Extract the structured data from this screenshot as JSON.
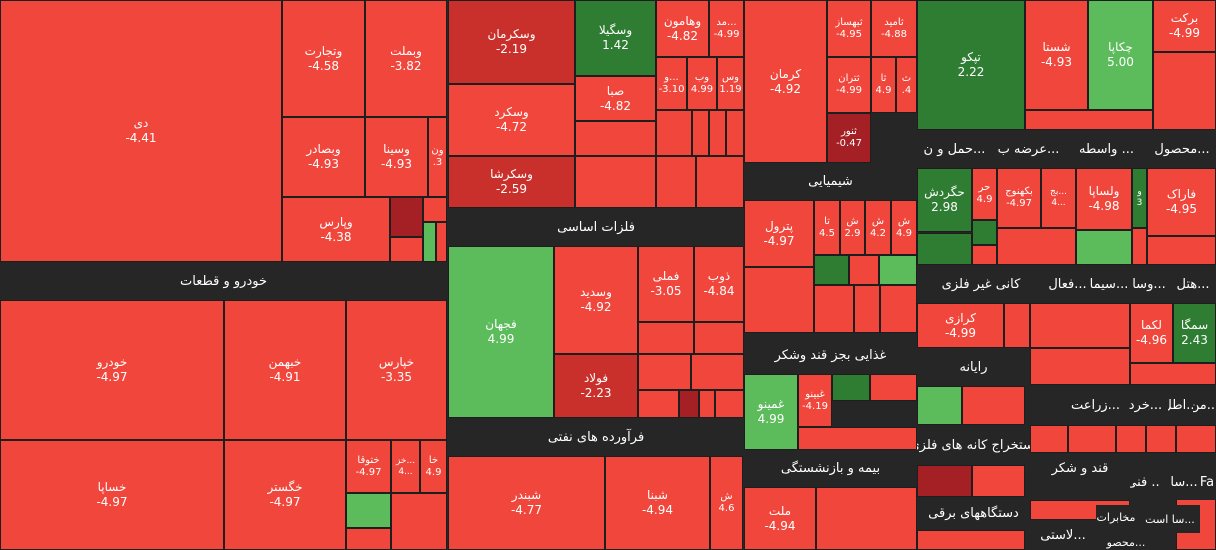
{
  "colors": {
    "red": "#f0463c",
    "dark_red": "#c9302c",
    "deep_red": "#a52024",
    "green": "#4caf50",
    "dark_green": "#2e7d32",
    "light_green": "#5cbc5c",
    "band": "#262626"
  },
  "chart_data": {
    "type": "treemap",
    "title": "",
    "sectors": [
      "خودرو و قطعات",
      "فلزات اساسی",
      "فرآورده های نفتی",
      "شیمیایی",
      "غذایی بجز قند وشکر",
      "بیمه و بازنشستگی",
      "رایانه",
      "استخراج کانه های فلزی",
      "دستگاههای برقی",
      "کانی غیر فلزی",
      "قند و شکر",
      "حمل و ن...",
      "عرضه ب...",
      "واسطه ...",
      "محصول...",
      "هتل...",
      "وسا...",
      "سیما...",
      "فعال...",
      "زراعت...",
      "خرد...",
      "اطل...",
      "من...",
      "فنی ...",
      "سا...",
      "Fa",
      "مخابرات",
      "سا است...",
      "لاستی...",
      "محصو..."
    ],
    "cells": [
      {
        "name": "دی",
        "value": "-4.41"
      },
      {
        "name": "وتجارت",
        "value": "-4.58"
      },
      {
        "name": "وبملت",
        "value": "-3.82"
      },
      {
        "name": "وبصادر",
        "value": "-4.93"
      },
      {
        "name": "وسینا",
        "value": "-4.93"
      },
      {
        "name": "ون",
        "value": ".3"
      },
      {
        "name": "وپارس",
        "value": "-4.38"
      },
      {
        "name": "خودرو",
        "value": "-4.97"
      },
      {
        "name": "خبهمن",
        "value": "-4.91"
      },
      {
        "name": "خپارس",
        "value": "-3.35"
      },
      {
        "name": "خساپا",
        "value": "-4.97"
      },
      {
        "name": "خگستر",
        "value": "-4.97"
      },
      {
        "name": "ختوقا",
        "value": "-4.97"
      },
      {
        "name": "خز...",
        "value": "4..."
      },
      {
        "name": "خا",
        "value": "4.9"
      },
      {
        "name": "وسکرمان",
        "value": "-2.19"
      },
      {
        "name": "وسکرد",
        "value": "-4.72"
      },
      {
        "name": "وسکرشا",
        "value": "-2.59"
      },
      {
        "name": "وسگیلا",
        "value": "1.42"
      },
      {
        "name": "وهامون",
        "value": "-4.82"
      },
      {
        "name": "مد...",
        "value": "-4.99"
      },
      {
        "name": "صبا",
        "value": "-4.82"
      },
      {
        "name": "و...",
        "value": "-3.10"
      },
      {
        "name": "وب",
        "value": "4.99"
      },
      {
        "name": "وس",
        "value": "1.19"
      },
      {
        "name": "فجهان",
        "value": "4.99"
      },
      {
        "name": "وسدید",
        "value": "-4.92"
      },
      {
        "name": "فملی",
        "value": "-3.05"
      },
      {
        "name": "ذوب",
        "value": "-4.84"
      },
      {
        "name": "فولاد",
        "value": "-2.23"
      },
      {
        "name": "شبندر",
        "value": "-4.77"
      },
      {
        "name": "شبنا",
        "value": "-4.94"
      },
      {
        "name": "ش",
        "value": "4.6"
      },
      {
        "name": "کرمان",
        "value": "-4.92"
      },
      {
        "name": "ثبهساز",
        "value": "-4.95"
      },
      {
        "name": "ثامید",
        "value": "-4.88"
      },
      {
        "name": "ثتران",
        "value": "-4.99"
      },
      {
        "name": "ثا",
        "value": "4.9"
      },
      {
        "name": "ث",
        "value": ".4"
      },
      {
        "name": "ثنور",
        "value": "-0.47"
      },
      {
        "name": "پترول",
        "value": "-4.97"
      },
      {
        "name": "تا",
        "value": "4.5"
      },
      {
        "name": "ش",
        "value": "2.9"
      },
      {
        "name": "ش",
        "value": "4.2"
      },
      {
        "name": "ش",
        "value": "4.9"
      },
      {
        "name": "غمینو",
        "value": "4.99"
      },
      {
        "name": "غبینو",
        "value": "-4.19"
      },
      {
        "name": "ملت",
        "value": "-4.94"
      },
      {
        "name": "تپکو",
        "value": "2.22"
      },
      {
        "name": "شستا",
        "value": "-4.93"
      },
      {
        "name": "چکاپا",
        "value": "5.00"
      },
      {
        "name": "برکت",
        "value": "-4.99"
      },
      {
        "name": "حگردش",
        "value": "2.98"
      },
      {
        "name": "حر",
        "value": "4.9"
      },
      {
        "name": "بکهنوج",
        "value": "-4.97"
      },
      {
        "name": "بج...",
        "value": "4..."
      },
      {
        "name": "ولساپا",
        "value": "-4.98"
      },
      {
        "name": "و",
        "value": "3"
      },
      {
        "name": "فاراک",
        "value": "-4.95"
      },
      {
        "name": "کرازی",
        "value": "-4.99"
      },
      {
        "name": "لکما",
        "value": "-4.96"
      },
      {
        "name": "سمگا",
        "value": "2.43"
      }
    ]
  },
  "labels": {
    "s_auto": "خودرو و قطعات",
    "s_metal": "فلزات اساسی",
    "s_oil": "فرآورده های نفتی",
    "s_chem": "شیمیایی",
    "s_food": "غذایی بجز قند وشکر",
    "s_ins": "بیمه و بازنشستگی",
    "s_comp": "رایانه",
    "s_mine": "استخراج کانه های فلزی",
    "s_elec": "دستگاههای برقی",
    "s_nonmet": "کانی غیر فلزی",
    "s_sugar": "قند و شکر",
    "t1": "حمل و ن...",
    "t2": "عرضه ب...",
    "t3": "واسطه ...",
    "t4": "محصول...",
    "h1": "هتل...",
    "h2": "وسا...",
    "h3": "سیما...",
    "h4": "فعال...",
    "z1": "زراعت...",
    "z2": "خرد...",
    "z3": "اطل...",
    "z4": "من...",
    "f1": "فنی ...",
    "f2": "سا...",
    "f3": "Fa",
    "m1": "مخابرات",
    "m2": "سا است...",
    "m3": "لاستی...",
    "m4": "محصو..."
  }
}
